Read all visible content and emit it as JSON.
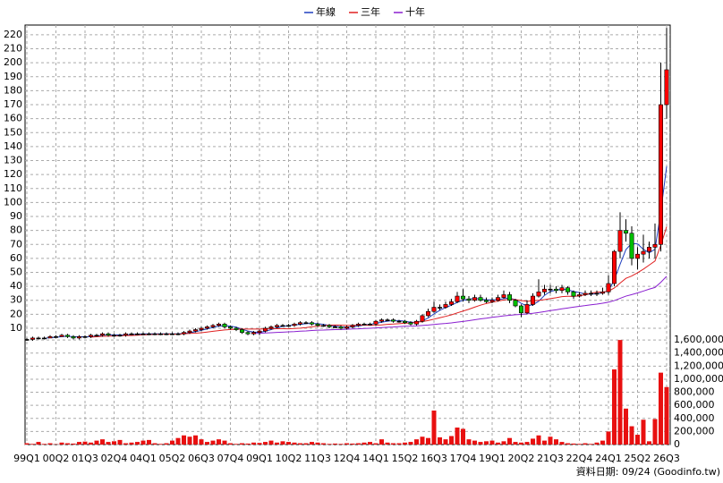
{
  "chart_data": {
    "type": "candlestick",
    "footer": "資料日期: 09/24 (Goodinfo.tw)",
    "categories": [
      "99Q1",
      null,
      null,
      null,
      null,
      "00Q2",
      null,
      null,
      null,
      null,
      "01Q3",
      null,
      null,
      null,
      null,
      "02Q4",
      null,
      null,
      null,
      null,
      "04Q1",
      null,
      null,
      null,
      null,
      "05Q2",
      null,
      null,
      null,
      null,
      "06Q3",
      null,
      null,
      null,
      null,
      "07Q4",
      null,
      null,
      null,
      null,
      "09Q1",
      null,
      null,
      null,
      null,
      "10Q2",
      null,
      null,
      null,
      null,
      "11Q3",
      null,
      null,
      null,
      null,
      "12Q4",
      null,
      null,
      null,
      null,
      "14Q1",
      null,
      null,
      null,
      null,
      "15Q2",
      null,
      null,
      null,
      null,
      "16Q3",
      null,
      null,
      null,
      null,
      "17Q4",
      null,
      null,
      null,
      null,
      "19Q1",
      null,
      null,
      null,
      null,
      "20Q2",
      null,
      null,
      null,
      null,
      "21Q3",
      null,
      null,
      null,
      null,
      "22Q4",
      null,
      null,
      null,
      null,
      "24Q1",
      null,
      null,
      null,
      null,
      "25Q2",
      null,
      null,
      null,
      null,
      "26Q3"
    ],
    "open": [
      2,
      2,
      3,
      3,
      3,
      4,
      4,
      5,
      4,
      3,
      4,
      4,
      5,
      5,
      6,
      5,
      5,
      5,
      6,
      6,
      6,
      6,
      6,
      6,
      6,
      6,
      6,
      6,
      7,
      8,
      9,
      10,
      11,
      12,
      13,
      11,
      10,
      9,
      7,
      6,
      7,
      8,
      10,
      11,
      12,
      12,
      12,
      13,
      14,
      14,
      13,
      12,
      12,
      11,
      11,
      10,
      11,
      12,
      13,
      13,
      13,
      15,
      16,
      16,
      15,
      15,
      14,
      13,
      15,
      19,
      22,
      25,
      25,
      27,
      29,
      33,
      31,
      30,
      32,
      30,
      29,
      30,
      32,
      34,
      30,
      26,
      21,
      27,
      33,
      36,
      38,
      38,
      37,
      39,
      36,
      33,
      34,
      35,
      35,
      35,
      36,
      42,
      65,
      80,
      78,
      60,
      63,
      65,
      68,
      70,
      170
    ],
    "high": [
      3,
      4,
      4,
      4,
      5,
      5,
      6,
      6,
      5,
      5,
      5,
      6,
      6,
      7,
      7,
      6,
      6,
      7,
      7,
      7,
      7,
      7,
      7,
      7,
      7,
      7,
      7,
      8,
      9,
      10,
      11,
      12,
      13,
      14,
      14,
      12,
      11,
      10,
      8,
      8,
      9,
      11,
      12,
      13,
      13,
      13,
      14,
      15,
      15,
      15,
      14,
      13,
      13,
      12,
      12,
      12,
      13,
      14,
      14,
      14,
      16,
      17,
      17,
      17,
      16,
      16,
      15,
      16,
      20,
      24,
      29,
      27,
      29,
      31,
      36,
      38,
      33,
      34,
      34,
      32,
      32,
      34,
      37,
      36,
      31,
      27,
      30,
      35,
      45,
      41,
      41,
      40,
      41,
      40,
      37,
      36,
      37,
      37,
      37,
      39,
      48,
      66,
      93,
      88,
      83,
      68,
      77,
      72,
      85,
      200,
      225
    ],
    "low": [
      1,
      1,
      2,
      2,
      3,
      3,
      4,
      3,
      2,
      2,
      3,
      3,
      4,
      4,
      4,
      4,
      4,
      4,
      5,
      5,
      5,
      5,
      5,
      5,
      5,
      5,
      5,
      5,
      6,
      7,
      8,
      9,
      10,
      11,
      10,
      9,
      8,
      6,
      5,
      5,
      5,
      7,
      9,
      10,
      11,
      11,
      11,
      12,
      13,
      12,
      11,
      11,
      10,
      10,
      9,
      9,
      10,
      11,
      12,
      12,
      12,
      14,
      15,
      14,
      14,
      13,
      12,
      12,
      14,
      18,
      21,
      23,
      24,
      26,
      28,
      29,
      28,
      29,
      29,
      28,
      28,
      29,
      31,
      28,
      25,
      18,
      20,
      26,
      32,
      34,
      35,
      35,
      35,
      34,
      31,
      32,
      33,
      33,
      33,
      34,
      34,
      40,
      60,
      72,
      55,
      52,
      57,
      60,
      60,
      65,
      160
    ],
    "close": [
      2,
      3,
      3,
      3,
      4,
      4,
      5,
      4,
      3,
      4,
      4,
      5,
      5,
      6,
      5,
      5,
      5,
      6,
      6,
      6,
      6,
      6,
      6,
      6,
      6,
      6,
      6,
      7,
      8,
      9,
      10,
      11,
      12,
      13,
      11,
      10,
      9,
      7,
      6,
      7,
      8,
      10,
      11,
      12,
      12,
      12,
      13,
      14,
      14,
      13,
      12,
      12,
      11,
      11,
      10,
      11,
      12,
      13,
      13,
      13,
      15,
      16,
      16,
      15,
      15,
      14,
      13,
      15,
      19,
      22,
      25,
      25,
      27,
      29,
      33,
      31,
      30,
      32,
      30,
      29,
      30,
      32,
      34,
      30,
      26,
      21,
      27,
      33,
      36,
      38,
      38,
      37,
      39,
      36,
      33,
      34,
      35,
      35,
      35,
      36,
      42,
      65,
      80,
      78,
      60,
      63,
      65,
      68,
      70,
      170,
      195
    ],
    "up_color": "#ff0000",
    "down_color": "#00c000",
    "volume": [
      20000,
      10000,
      40000,
      10000,
      20000,
      5000,
      30000,
      20000,
      15000,
      40000,
      45000,
      30000,
      60000,
      80000,
      40000,
      50000,
      70000,
      20000,
      30000,
      40000,
      60000,
      70000,
      20000,
      10000,
      20000,
      60000,
      100000,
      140000,
      120000,
      140000,
      80000,
      40000,
      60000,
      80000,
      60000,
      20000,
      10000,
      20000,
      15000,
      30000,
      25000,
      40000,
      60000,
      30000,
      50000,
      40000,
      30000,
      20000,
      20000,
      40000,
      30000,
      20000,
      10000,
      15000,
      10000,
      20000,
      15000,
      20000,
      30000,
      40000,
      20000,
      80000,
      30000,
      20000,
      20000,
      30000,
      40000,
      80000,
      120000,
      100000,
      520000,
      110000,
      80000,
      130000,
      260000,
      240000,
      80000,
      60000,
      40000,
      50000,
      60000,
      30000,
      50000,
      100000,
      40000,
      30000,
      40000,
      90000,
      140000,
      60000,
      120000,
      80000,
      40000,
      20000,
      15000,
      10000,
      20000,
      10000,
      30000,
      60000,
      200000,
      1150000,
      1600000,
      550000,
      280000,
      150000,
      380000,
      50000,
      390000,
      1100000,
      880000
    ],
    "volume_color": "#e81010",
    "lines": [
      {
        "name": "年線",
        "color": "#1f3fbf",
        "values": [
          null,
          null,
          null,
          2.8,
          3.3,
          3.5,
          4,
          4.3,
          4,
          4,
          3.8,
          4,
          4.5,
          5,
          5.3,
          5.3,
          5.3,
          5.3,
          5.5,
          5.8,
          6,
          6,
          6,
          6,
          6,
          6,
          6,
          6.3,
          6.8,
          7.5,
          8.5,
          9.5,
          10.5,
          11.5,
          11.8,
          11.5,
          10.8,
          9.3,
          8,
          7.3,
          7,
          7.8,
          9,
          10.3,
          11.3,
          11.8,
          12.3,
          12.8,
          13.3,
          13.5,
          13.3,
          12.8,
          12,
          11.5,
          11,
          10.8,
          11,
          11.5,
          12.3,
          12.8,
          13.5,
          14.3,
          15,
          15.5,
          15.5,
          15,
          14.3,
          14.3,
          15.3,
          17.3,
          20.3,
          22.8,
          24.8,
          26.5,
          28.5,
          30,
          30.8,
          31.5,
          30.8,
          30.3,
          30.3,
          30.3,
          31.3,
          31.5,
          30.5,
          27.8,
          26,
          26.8,
          29.3,
          33.5,
          36.3,
          37.3,
          38,
          37.5,
          36.3,
          35.5,
          34.5,
          34.3,
          34.8,
          35.3,
          37,
          44.5,
          55.8,
          66.3,
          70.8,
          70.3,
          66.5,
          64,
          66.5,
          93.3,
          125.8
        ]
      },
      {
        "name": "三年",
        "color": "#e02020",
        "values": [
          null,
          null,
          null,
          null,
          null,
          null,
          null,
          null,
          null,
          null,
          null,
          3.7,
          3.9,
          4.2,
          4.3,
          4.5,
          4.6,
          4.8,
          4.8,
          5,
          5.3,
          5.4,
          5.6,
          5.7,
          5.8,
          5.8,
          5.8,
          6,
          6.3,
          6.5,
          6.8,
          7.3,
          7.8,
          8.3,
          8.8,
          9.1,
          9.3,
          9.4,
          9.4,
          9.4,
          9.4,
          9.5,
          9.6,
          9.7,
          9.7,
          9.6,
          9.8,
          10.1,
          10.5,
          11,
          11.5,
          11.9,
          12.2,
          12.3,
          12.2,
          12.1,
          12.1,
          12.2,
          12.2,
          12.1,
          12.2,
          12.4,
          12.8,
          13,
          13.3,
          13.6,
          13.8,
          14.2,
          14.8,
          15.5,
          16.5,
          17.5,
          18.5,
          19.6,
          21,
          22.3,
          23.6,
          25.1,
          26.5,
          27.7,
          28.6,
          29.4,
          30.2,
          30.6,
          30.5,
          29.8,
          29.3,
          29.5,
          30,
          30.5,
          31.2,
          31.8,
          32.6,
          32.9,
          32.8,
          33.2,
          33.9,
          35.1,
          35.8,
          36,
          36.5,
          38.8,
          42.3,
          45.7,
          47.4,
          49.7,
          52.3,
          55.2,
          58.1,
          69.3,
          82.7
        ]
      },
      {
        "name": "十年",
        "color": "#8a1fd0",
        "values": [
          null,
          null,
          null,
          null,
          null,
          null,
          null,
          null,
          null,
          null,
          null,
          null,
          null,
          null,
          null,
          null,
          null,
          null,
          null,
          null,
          null,
          null,
          null,
          null,
          null,
          null,
          null,
          null,
          null,
          null,
          null,
          null,
          null,
          null,
          null,
          null,
          null,
          null,
          null,
          6.25,
          6.4,
          6.6,
          6.8,
          7,
          7.2,
          7.4,
          7.6,
          7.9,
          8.1,
          8.4,
          8.6,
          8.7,
          8.9,
          9,
          9.1,
          9.3,
          9.5,
          9.6,
          9.8,
          10,
          10.2,
          10.5,
          10.7,
          10.9,
          11.2,
          11.4,
          11.5,
          11.7,
          12,
          12.3,
          12.7,
          13.1,
          13.4,
          13.8,
          14.4,
          14.9,
          15.4,
          16.1,
          16.7,
          17.2,
          17.8,
          18.3,
          18.9,
          19.3,
          19.7,
          19.9,
          20.3,
          20.7,
          21.3,
          21.9,
          22.6,
          23.2,
          23.9,
          24.5,
          25.1,
          25.7,
          26.2,
          26.8,
          27.3,
          27.9,
          28.6,
          29.8,
          31.4,
          33,
          34.1,
          35.3,
          36.6,
          38,
          39.2,
          42.9,
          47.2
        ]
      }
    ],
    "ylim": [
      0,
      227
    ],
    "yticks": [
      10,
      20,
      30,
      40,
      50,
      60,
      70,
      80,
      90,
      100,
      110,
      120,
      130,
      140,
      150,
      160,
      170,
      180,
      190,
      200,
      210,
      220
    ],
    "y2lim": [
      0,
      1670000
    ],
    "y2ticks": [
      0,
      {
        "value": 200000,
        "label": "200,000"
      },
      {
        "value": 400000,
        "label": "400,000"
      },
      {
        "value": 600000,
        "label": "600,000"
      },
      {
        "value": 800000,
        "label": "800,000"
      },
      {
        "value": 1000000,
        "label": "1,000,000"
      },
      {
        "value": 1200000,
        "label": "1,200,000"
      },
      {
        "value": 1400000,
        "label": "1,400,000"
      },
      {
        "value": 1600000,
        "label": "1,600,000"
      }
    ],
    "grid": true
  }
}
